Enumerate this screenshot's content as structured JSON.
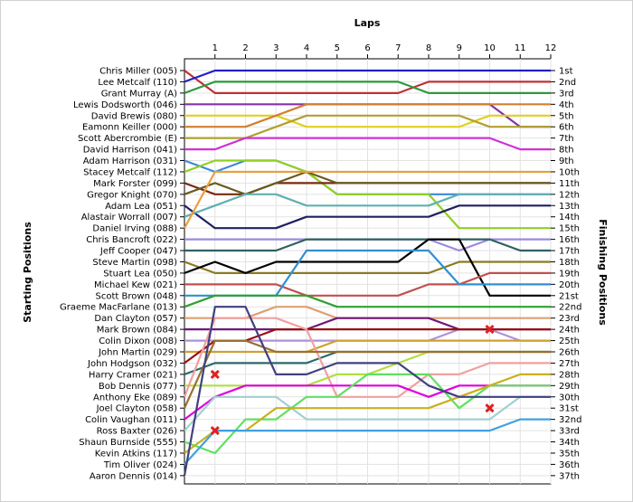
{
  "chart_data": {
    "type": "line",
    "title": "",
    "xlabel": "Laps",
    "ylabel_left": "Starting Positions",
    "ylabel_right": "Finishing Positions",
    "x_ticks": [
      1,
      2,
      3,
      4,
      5,
      6,
      7,
      8,
      9,
      10,
      11,
      12
    ],
    "x_range": [
      0,
      12
    ],
    "y_range": [
      1,
      37
    ],
    "grid": true,
    "starting_positions": [
      "Chris Miller (005)",
      "Lee Metcalf (110)",
      "Grant Murray (A)",
      "Lewis Dodsworth (046)",
      "David Brewis (080)",
      "Eamonn Keiller (000)",
      "Scott Abercrombie (E)",
      "David Harrison (041)",
      "Adam Harrison (031)",
      "Stacey Metcalf (112)",
      "Mark Forster (099)",
      "Gregor Knight (070)",
      "Adam Lea (051)",
      "Alastair Worrall (007)",
      "Daniel Irving (088)",
      "Chris Bancroft (022)",
      "Jeff Cooper (047)",
      "Steve Martin (098)",
      "Stuart Lea (050)",
      "Michael Kew (021)",
      "Scott Brown (048)",
      "Graeme MacFarlane (013)",
      "Dan Clayton (057)",
      "Mark Brown (084)",
      "Colin Dixon (008)",
      "John Martin (029)",
      "John Hodgson (032)",
      "Harry Cramer (021)",
      "Bob Dennis (077)",
      "Anthony Eke (089)",
      "Joel Clayton (058)",
      "Colin Vaughan (011)",
      "Ross Baxter (026)",
      "Shaun Burnside (555)",
      "Kevin Atkins (117)",
      "Tim Oliver (024)",
      "Aaron Dennis (014)"
    ],
    "finishing_positions": [
      "1st",
      "2nd",
      "3rd",
      "4th",
      "5th",
      "6th",
      "7th",
      "8th",
      "9th",
      "10th",
      "11th",
      "12th",
      "13th",
      "14th",
      "15th",
      "16th",
      "17th",
      "18th",
      "19th",
      "20th",
      "21st",
      "22nd",
      "23rd",
      "24th",
      "25th",
      "26th",
      "27th",
      "28th",
      "29th",
      "30th",
      "31st",
      "32nd",
      "33rd",
      "34th",
      "35th",
      "36th",
      "37th"
    ],
    "series": [
      {
        "color": "#c0303a",
        "values": [
          1,
          3,
          3,
          3,
          3,
          3,
          3,
          3,
          2,
          2,
          2,
          2
        ]
      },
      {
        "color": "#2020c8",
        "values": [
          2,
          1,
          1,
          1,
          1,
          1,
          1,
          1,
          1,
          1,
          1,
          1
        ]
      },
      {
        "color": "#2a9a3a",
        "values": [
          3,
          2,
          2,
          2,
          2,
          2,
          2,
          2,
          3,
          3,
          3,
          3
        ]
      },
      {
        "color": "#8a30a8",
        "values": [
          4,
          4,
          4,
          4,
          4,
          4,
          4,
          4,
          4,
          4,
          4,
          6
        ]
      },
      {
        "color": "#e0d020",
        "values": [
          5,
          5,
          5,
          5,
          6,
          6,
          6,
          6,
          6,
          6,
          5,
          5
        ]
      },
      {
        "color": "#d08030",
        "values": [
          6,
          6,
          6,
          5,
          4,
          4,
          4,
          4,
          4,
          4,
          4,
          4
        ]
      },
      {
        "color": "#b0a030",
        "values": [
          7,
          7,
          7,
          6,
          5,
          5,
          5,
          5,
          5,
          5,
          6,
          6
        ]
      },
      {
        "color": "#d030d8",
        "values": [
          8,
          8,
          7,
          7,
          7,
          7,
          7,
          7,
          7,
          7,
          7,
          8
        ]
      },
      {
        "color": "#3a8ad8",
        "values": [
          9,
          10,
          9,
          9,
          10,
          12,
          12,
          12,
          12,
          12,
          12,
          12
        ]
      },
      {
        "color": "#90d020",
        "values": [
          10,
          9,
          9,
          9,
          10,
          12,
          12,
          12,
          12,
          15,
          15,
          15
        ]
      },
      {
        "color": "#7a2a10",
        "values": [
          11,
          12,
          12,
          11,
          11,
          11,
          11,
          11,
          11,
          11,
          11,
          11
        ]
      },
      {
        "color": "#6a5a20",
        "values": [
          12,
          11,
          12,
          11,
          10,
          11,
          11,
          11,
          11,
          11,
          11,
          11
        ]
      },
      {
        "color": "#202060",
        "values": [
          13,
          15,
          15,
          15,
          14,
          14,
          14,
          14,
          14,
          13,
          13,
          13
        ]
      },
      {
        "color": "#60b0b0",
        "values": [
          14,
          13,
          12,
          12,
          13,
          13,
          13,
          13,
          13,
          12,
          12,
          12
        ]
      },
      {
        "color": "#e8a040",
        "values": [
          15,
          10,
          10,
          10,
          10,
          10,
          10,
          10,
          10,
          10,
          10,
          10
        ]
      },
      {
        "color": "#9a8ae0",
        "values": [
          16,
          16,
          16,
          16,
          16,
          16,
          16,
          16,
          16,
          17,
          16,
          16
        ]
      },
      {
        "color": "#306060",
        "values": [
          17,
          17,
          17,
          17,
          16,
          16,
          16,
          16,
          16,
          16,
          16,
          17
        ]
      },
      {
        "color": "#8a7a20",
        "values": [
          18,
          19,
          19,
          19,
          19,
          19,
          19,
          19,
          19,
          18,
          18,
          18
        ]
      },
      {
        "color": "#000000",
        "values": [
          19,
          18,
          19,
          18,
          18,
          18,
          18,
          18,
          16,
          16,
          21,
          21
        ]
      },
      {
        "color": "#c05050",
        "values": [
          20,
          20,
          20,
          20,
          21,
          21,
          21,
          21,
          20,
          20,
          19,
          19
        ]
      },
      {
        "color": "#3090d0",
        "values": [
          21,
          21,
          21,
          21,
          17,
          17,
          17,
          17,
          17,
          20,
          20,
          20
        ]
      },
      {
        "color": "#30a030",
        "values": [
          22,
          21,
          21,
          21,
          21,
          22,
          22,
          22,
          22,
          22,
          22,
          22
        ]
      },
      {
        "color": "#e0a070",
        "values": [
          23,
          23,
          23,
          22,
          22,
          23,
          23,
          23,
          23,
          23,
          23,
          23
        ]
      },
      {
        "color": "#701878",
        "values": [
          24,
          24,
          24,
          24,
          24,
          23,
          23,
          23,
          23,
          24,
          24,
          24
        ]
      },
      {
        "color": "#b090d8",
        "values": [
          25,
          25,
          25,
          25,
          25,
          25,
          25,
          25,
          25,
          24,
          24,
          25
        ]
      },
      {
        "color": "#d0a030",
        "values": [
          26,
          26,
          26,
          26,
          26,
          25,
          25,
          25,
          25,
          25,
          25,
          25
        ]
      },
      {
        "color": "#9a1010",
        "values": [
          27,
          25,
          25,
          24,
          24,
          24,
          24,
          24,
          24,
          24,
          24,
          24
        ]
      },
      {
        "color": "#2a6a6a",
        "values": [
          28,
          27,
          27,
          27,
          27,
          26,
          26,
          26,
          26,
          26,
          26,
          26
        ]
      },
      {
        "color": "#b0e040",
        "values": [
          29,
          29,
          29,
          29,
          29,
          28,
          28,
          27,
          26,
          26,
          26,
          26
        ]
      },
      {
        "color": "#f0a0a0",
        "values": [
          30,
          23,
          23,
          23,
          24,
          30,
          30,
          30,
          28,
          28,
          27,
          27
        ]
      },
      {
        "color": "#9a7030",
        "values": [
          31,
          25,
          25,
          26,
          26,
          26,
          26,
          26,
          26,
          26,
          26,
          26
        ]
      },
      {
        "color": "#e000e0",
        "values": [
          32,
          30,
          29,
          29,
          29,
          29,
          29,
          29,
          30,
          29,
          29,
          29
        ]
      },
      {
        "color": "#a0d0d0",
        "values": [
          33,
          30,
          30,
          30,
          32,
          32,
          32,
          32,
          32,
          32,
          32,
          30
        ]
      },
      {
        "color": "#60e060",
        "values": [
          34,
          35,
          32,
          32,
          30,
          30,
          28,
          28,
          28,
          31,
          29,
          29
        ]
      },
      {
        "color": "#c8b020",
        "values": [
          35,
          33,
          33,
          31,
          31,
          31,
          31,
          31,
          31,
          30,
          29,
          28
        ]
      },
      {
        "color": "#40a0e0",
        "values": [
          36,
          33,
          33,
          33,
          33,
          33,
          33,
          33,
          33,
          33,
          33,
          32
        ]
      },
      {
        "color": "#404080",
        "values": [
          37,
          22,
          22,
          28,
          28,
          27,
          27,
          27,
          29,
          30,
          30,
          30
        ]
      }
    ],
    "retired_marker_color": "#e02020",
    "retired": [
      {
        "lap": 1,
        "position": 28
      },
      {
        "lap": 1,
        "position": 33
      },
      {
        "lap": 10,
        "position": 24
      },
      {
        "lap": 10,
        "position": 31
      }
    ]
  }
}
